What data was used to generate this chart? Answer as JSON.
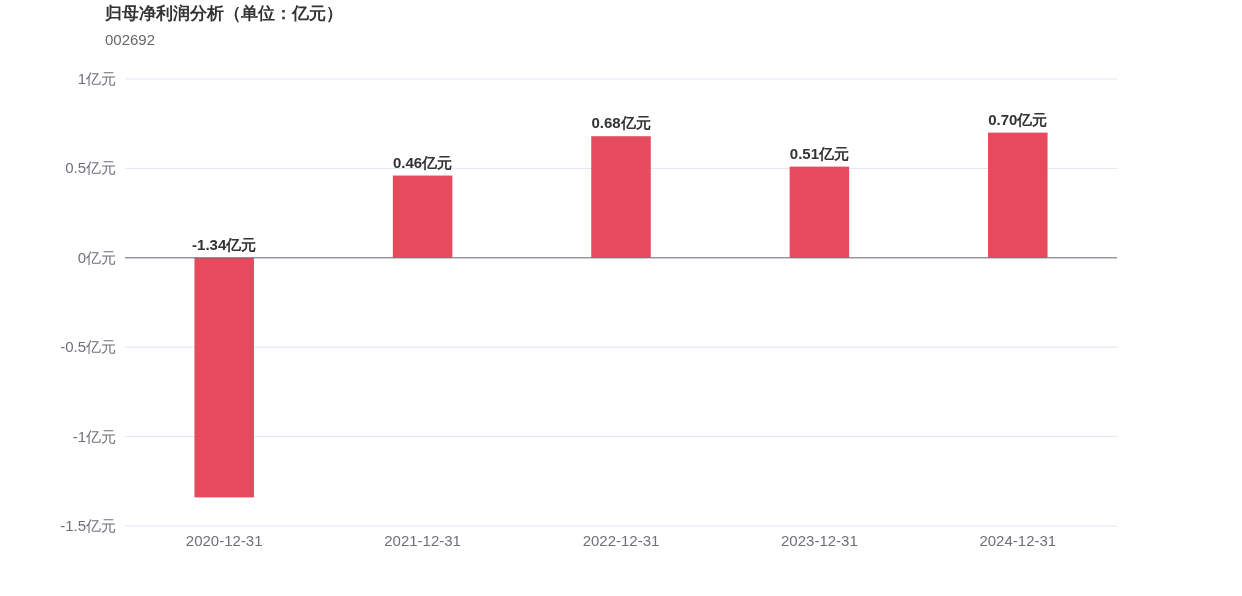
{
  "chart_data": {
    "type": "bar",
    "title": "归母净利润分析（单位：亿元）",
    "subtitle": "002692",
    "categories": [
      "2020-12-31",
      "2021-12-31",
      "2022-12-31",
      "2023-12-31",
      "2024-12-31"
    ],
    "values": [
      -1.34,
      0.46,
      0.68,
      0.51,
      0.7
    ],
    "value_labels": [
      "-1.34亿元",
      "0.46亿元",
      "0.68亿元",
      "0.51亿元",
      "0.70亿元"
    ],
    "color": "#e64a5d",
    "ylim": [
      -1.5,
      1
    ],
    "yticks": [
      {
        "value": -1.5,
        "label": "-1.5亿元"
      },
      {
        "value": -1,
        "label": "-1亿元"
      },
      {
        "value": -0.5,
        "label": "-0.5亿元"
      },
      {
        "value": 0,
        "label": "0亿元"
      },
      {
        "value": 0.5,
        "label": "0.5亿元"
      },
      {
        "value": 1,
        "label": "1亿元"
      }
    ],
    "grid": "y"
  }
}
